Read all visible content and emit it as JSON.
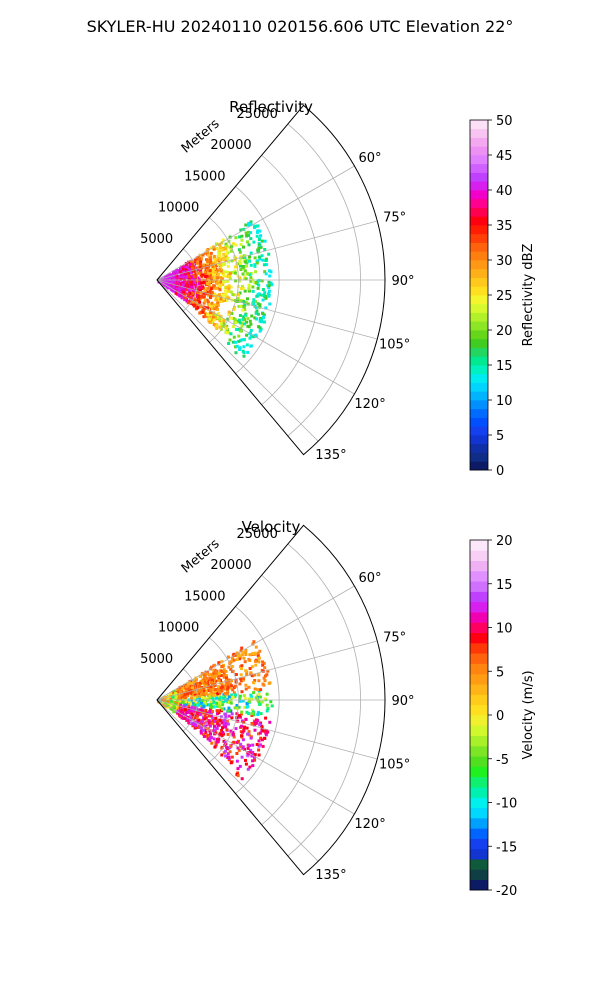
{
  "suptitle": "SKYLER-HU  20240110  020156.606 UTC Elevation 22°",
  "chart_data": [
    {
      "type": "polar-sector",
      "title": "Reflectivity",
      "range_label": "Meters",
      "range_ticks": [
        5000,
        10000,
        15000,
        20000,
        25000
      ],
      "range_max": 28000,
      "angle_range": [
        40,
        140
      ],
      "angle_ticks": [
        60,
        75,
        90,
        105,
        120,
        135
      ],
      "grid": true,
      "colorbar": {
        "label": "Reflectivity dBZ",
        "min": 0,
        "max": 50,
        "ticks": [
          0,
          5,
          10,
          15,
          20,
          25,
          30,
          35,
          40,
          45,
          50
        ],
        "colors": [
          "#0d1a66",
          "#0f2c87",
          "#102ea5",
          "#1234d0",
          "#1440f0",
          "#0050ff",
          "#006bff",
          "#0090ff",
          "#00b4ff",
          "#00d4ff",
          "#00ecf0",
          "#00f0c0",
          "#00e890",
          "#22d660",
          "#40cc20",
          "#66d61a",
          "#8ce626",
          "#b2f02a",
          "#d8f82e",
          "#f5f52e",
          "#ffe020",
          "#ffc81c",
          "#ffb018",
          "#ff9814",
          "#ff7e10",
          "#ff620c",
          "#ff3e08",
          "#ff1e04",
          "#ff0010",
          "#ff0050",
          "#ff0090",
          "#f000c8",
          "#d820ee",
          "#c040ff",
          "#d060ff",
          "#e080ff",
          "#ec90f4",
          "#f4a8f0",
          "#f8c4f2",
          "#fce0f8"
        ]
      }
    },
    {
      "type": "polar-sector",
      "title": "Velocity",
      "range_label": "Meters",
      "range_ticks": [
        5000,
        10000,
        15000,
        20000,
        25000
      ],
      "range_max": 28000,
      "angle_range": [
        40,
        140
      ],
      "angle_ticks": [
        60,
        75,
        90,
        105,
        120,
        135
      ],
      "grid": true,
      "colorbar": {
        "label": "Velocity (m/s)",
        "min": -20,
        "max": 20,
        "ticks": [
          -20,
          -15,
          -10,
          -5,
          0,
          5,
          10,
          15,
          20
        ],
        "colors": [
          "#0d1a66",
          "#0f3f44",
          "#105a3c",
          "#1234d0",
          "#1440f0",
          "#0064ff",
          "#00a0ff",
          "#00d8ff",
          "#00f0ee",
          "#00f0b0",
          "#10f070",
          "#20f020",
          "#50e020",
          "#7ce626",
          "#a8f02a",
          "#d0f82c",
          "#f0f02e",
          "#ffe020",
          "#ffcc1c",
          "#ffb418",
          "#ff9c14",
          "#ff8410",
          "#ff640c",
          "#ff3808",
          "#ff0010",
          "#ff0060",
          "#f000b0",
          "#d820ee",
          "#c040ff",
          "#d070ff",
          "#e090ff",
          "#f0b0f4",
          "#f8d0f6",
          "#fce8fa"
        ]
      }
    }
  ]
}
